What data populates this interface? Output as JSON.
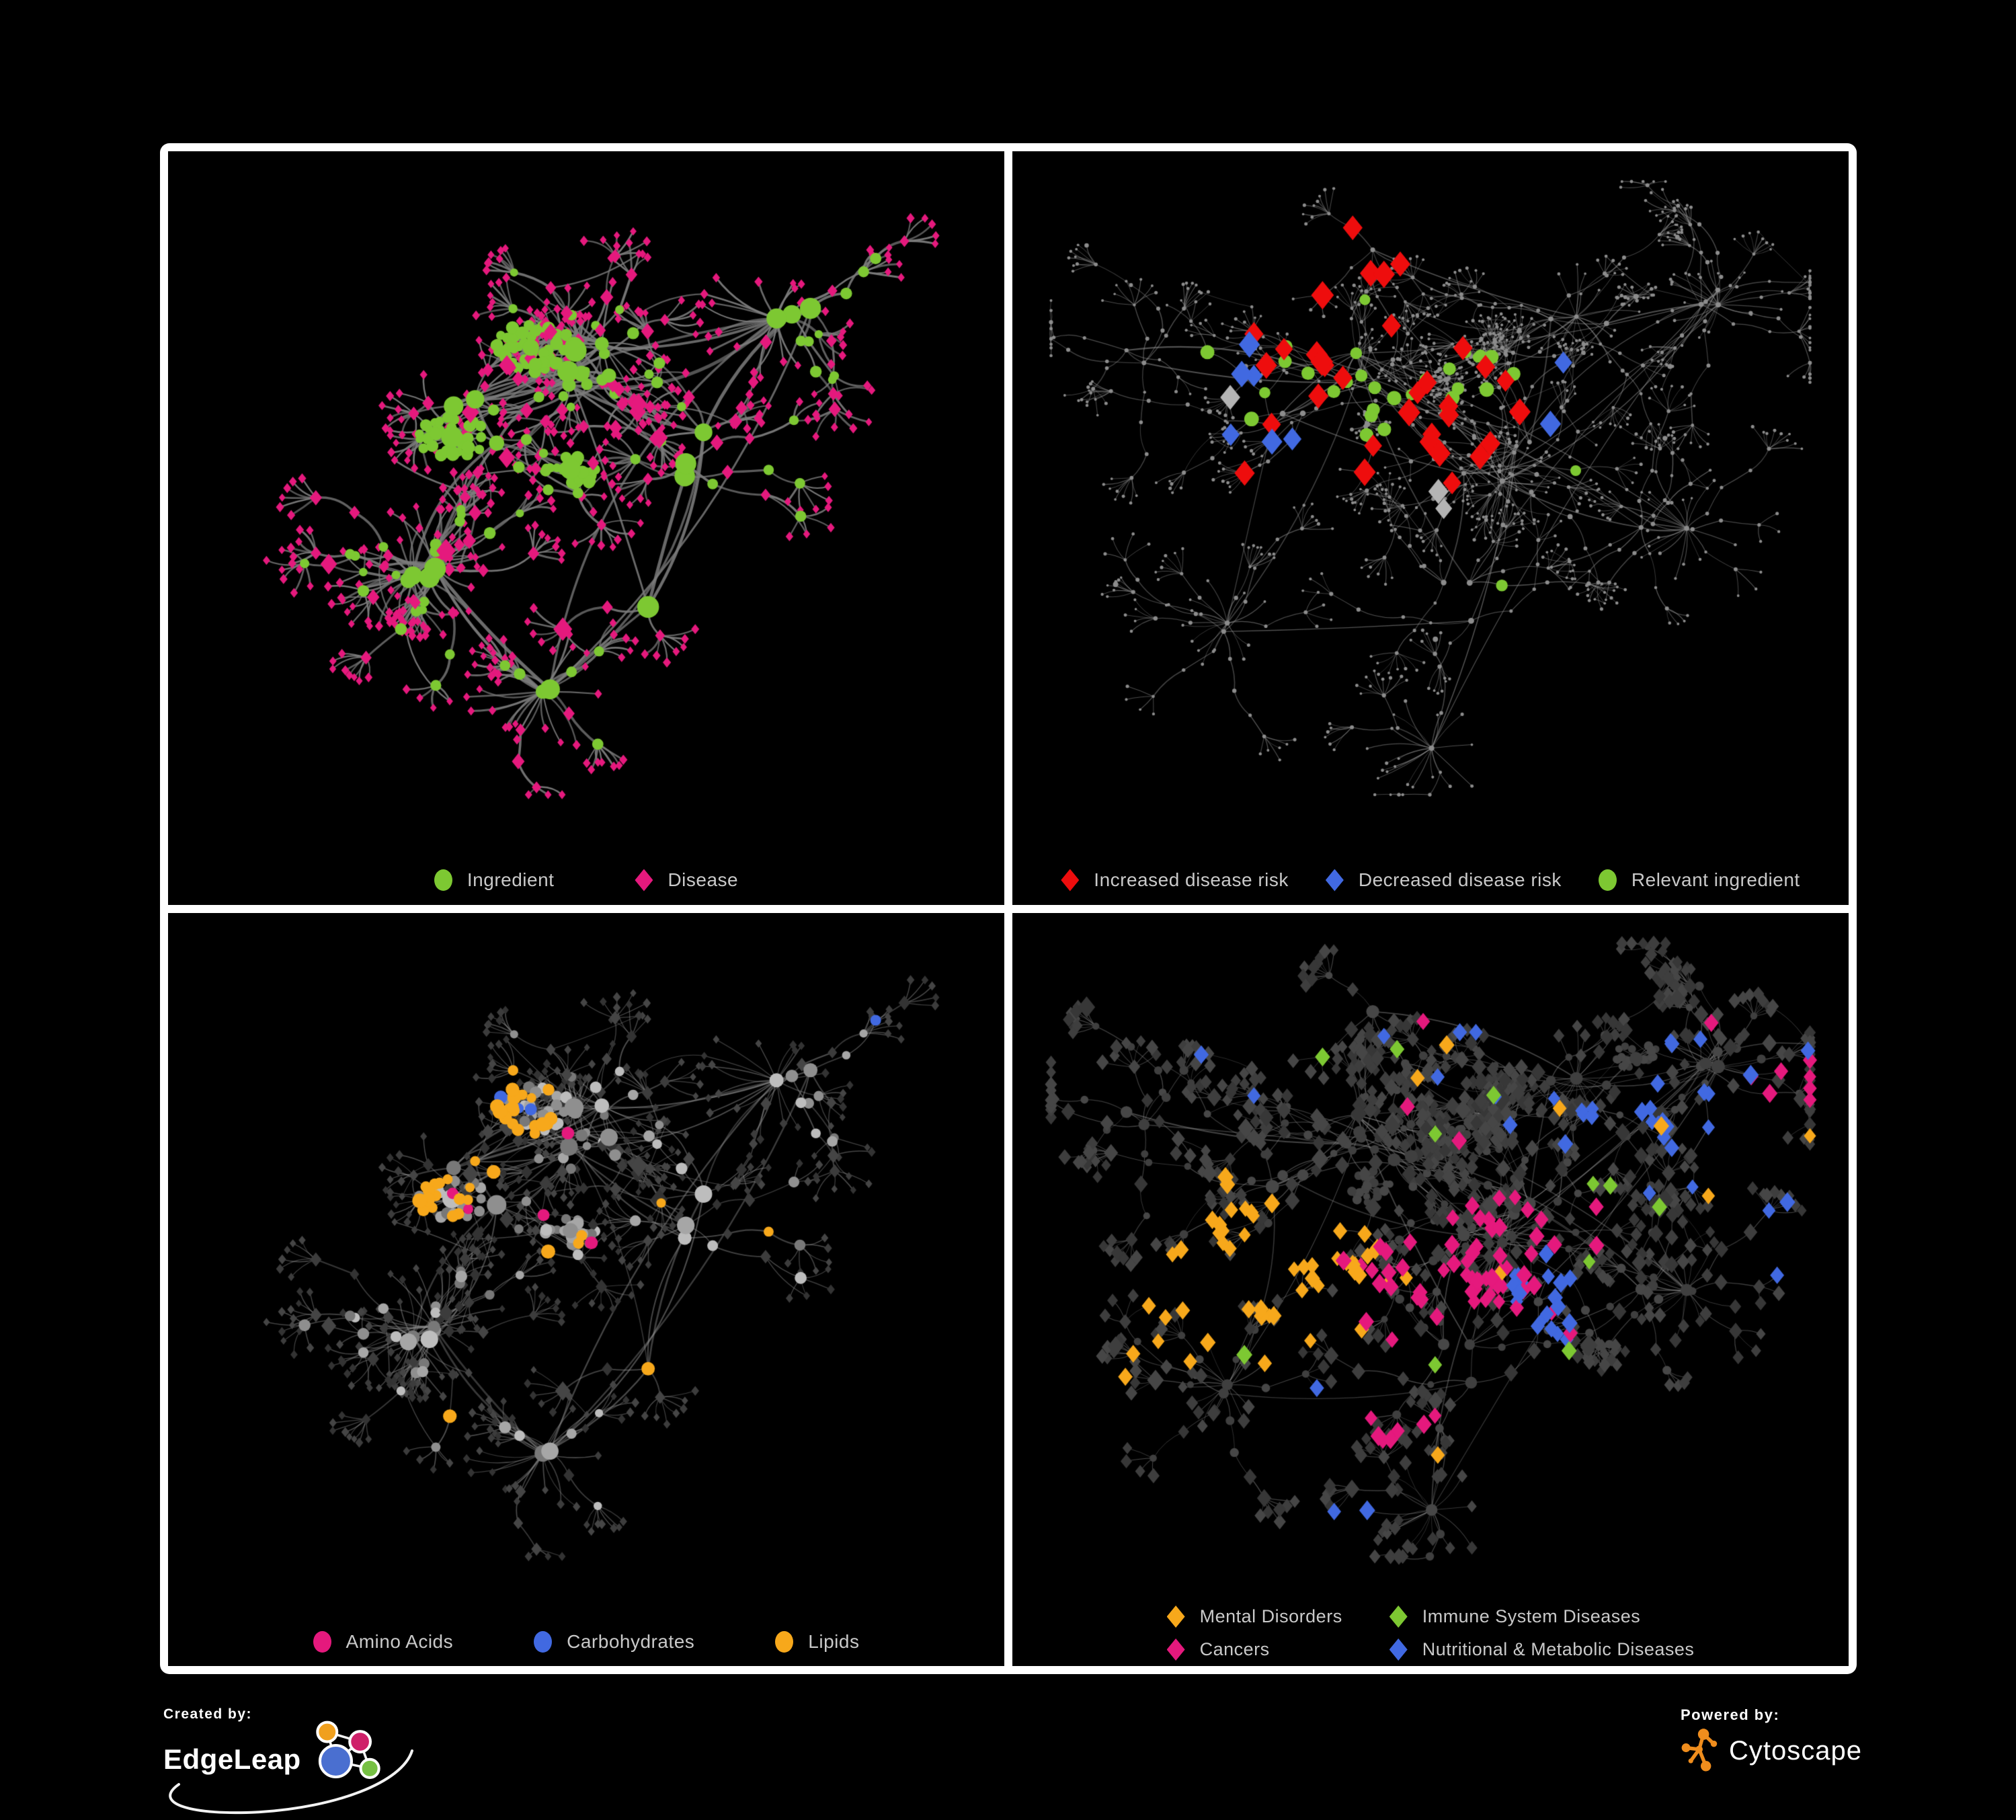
{
  "figure": {
    "background": "#000000",
    "frame_color": "#ffffff"
  },
  "panels": [
    {
      "id": "ingredient-disease",
      "legend": [
        {
          "shape": "circle",
          "color": "#7dc832",
          "label": "Ingredient"
        },
        {
          "shape": "diamond",
          "color": "#e5197d",
          "label": "Disease"
        }
      ],
      "layout": "A",
      "style": {
        "edge": {
          "color": "#7c7c7c",
          "alpha": 0.88,
          "width": 3.0,
          "curve": 0.5
        },
        "ingredient": {
          "shape": "circle",
          "colors": [
            "#7dc832"
          ],
          "rHub": [
            10,
            17
          ],
          "rBlob": [
            6.5,
            10
          ],
          "rMid": [
            6,
            9
          ],
          "rLeaf": [
            5,
            6
          ]
        },
        "disease": {
          "shape": "diamond",
          "colors": [
            "#e5197d"
          ],
          "rHub": [
            10,
            13
          ],
          "rBlob": [
            6,
            8
          ],
          "rMid": [
            7,
            10
          ],
          "rLeaf": [
            4.8,
            6.2
          ],
          "rBig": [
            12,
            15
          ]
        },
        "highlights": []
      }
    },
    {
      "id": "disease-risk",
      "legend": [
        {
          "shape": "diamond",
          "color": "#ee0d0d",
          "label": "Increased disease risk"
        },
        {
          "shape": "diamond",
          "color": "#4169e1",
          "label": "Decreased disease risk"
        },
        {
          "shape": "circle",
          "color": "#7dc832",
          "label": "Relevant ingredient"
        }
      ],
      "layout": "B",
      "style": {
        "edge": {
          "color": "#989898",
          "alpha": 0.5,
          "width": 1.25,
          "curve": 0.35
        },
        "ingredient": {
          "shape": "circle",
          "colors": [
            "#8c8c8c"
          ],
          "rHub": [
            3,
            4.5
          ],
          "rBlob": [
            2,
            3
          ],
          "rMid": [
            2.2,
            3.2
          ],
          "rLeaf": [
            1.8,
            2.6
          ]
        },
        "disease": {
          "shape": "circle",
          "colors": [
            "#8c8c8c"
          ],
          "rHub": [
            3,
            4.5
          ],
          "rBlob": [
            2,
            3
          ],
          "rMid": [
            2.2,
            3.2
          ],
          "rLeaf": [
            1.8,
            2.6
          ],
          "rBig": [
            3,
            4
          ]
        },
        "highlights": [
          {
            "applies": "disease",
            "roles": [
              "mid",
              "hub"
            ],
            "shape": "diamond",
            "color": "#ee0d0d",
            "size": [
              13,
              17
            ],
            "baseP": 0.004,
            "centers": [
              [
                0.42,
                0.3,
                0.16,
                0.5
              ],
              [
                0.47,
                0.43,
                0.13,
                0.45
              ],
              [
                0.3,
                0.34,
                0.07,
                0.3
              ],
              [
                0.62,
                0.9,
                0.05,
                0.55
              ],
              [
                0.56,
                0.3,
                0.09,
                0.3
              ],
              [
                0.67,
                0.33,
                0.05,
                0.35
              ]
            ]
          },
          {
            "applies": "disease",
            "roles": [
              "mid",
              "hub"
            ],
            "shape": "diamond",
            "color": "#4169e1",
            "size": [
              13,
              16
            ],
            "baseP": 0.0015,
            "centers": [
              [
                0.28,
                0.36,
                0.05,
                0.55
              ],
              [
                0.86,
                0.36,
                0.035,
                0.9
              ],
              [
                0.31,
                0.43,
                0.04,
                0.4
              ]
            ]
          },
          {
            "applies": "disease",
            "roles": [
              "mid",
              "hub"
            ],
            "shape": "diamond",
            "color": "#b4b4b4",
            "size": [
              12,
              15
            ],
            "baseP": 0.002,
            "centers": [
              [
                0.24,
                0.37,
                0.045,
                0.45
              ],
              [
                0.53,
                0.4,
                0.1,
                0.12
              ],
              [
                0.63,
                0.52,
                0.05,
                0.3
              ],
              [
                0.45,
                0.49,
                0.05,
                0.2
              ]
            ]
          },
          {
            "applies": "ingredient",
            "shape": "circle",
            "color": "#7dc832",
            "size": [
              8,
              11
            ],
            "baseP": 0.004,
            "centers": [
              [
                0.42,
                0.35,
                0.13,
                0.35
              ],
              [
                0.26,
                0.31,
                0.09,
                0.3
              ],
              [
                0.72,
                0.45,
                0.04,
                0.6
              ],
              [
                0.56,
                0.6,
                0.028,
                0.95
              ],
              [
                0.3,
                0.6,
                0.04,
                0.3
              ]
            ]
          }
        ]
      }
    },
    {
      "id": "nutrient-classes",
      "legend": [
        {
          "shape": "circle",
          "color": "#e5197d",
          "label": "Amino Acids"
        },
        {
          "shape": "circle",
          "color": "#4169e1",
          "label": "Carbohydrates"
        },
        {
          "shape": "circle",
          "color": "#f7a81b",
          "label": "Lipids"
        }
      ],
      "layout": "A",
      "style": {
        "edge": {
          "color": "#9a9a9a",
          "alpha": 0.45,
          "width": 1.7,
          "curve": 0.45
        },
        "ingredient": {
          "shape": "circle",
          "colors": [
            "#a6a6a6",
            "#8f8f8f",
            "#bdbdbd",
            "#787878"
          ],
          "rHub": [
            9,
            15
          ],
          "rBlob": [
            6,
            9
          ],
          "rMid": [
            6,
            9
          ],
          "rLeaf": [
            5,
            6
          ]
        },
        "disease": {
          "shape": "diamond",
          "colors": [
            "#3c3c3c",
            "#454545",
            "#333333"
          ],
          "rHub": [
            9,
            12
          ],
          "rBlob": [
            6,
            8
          ],
          "rMid": [
            6.5,
            9
          ],
          "rLeaf": [
            4.5,
            6
          ],
          "rBig": [
            10,
            13
          ]
        },
        "highlights": [
          {
            "applies": "ingredient",
            "shape": "circle",
            "color": "#f7a81b",
            "size": [
              7,
              11
            ],
            "baseP": 0.02,
            "centers": [
              [
                0.38,
                0.3,
                0.075,
                0.85
              ],
              [
                0.33,
                0.42,
                0.05,
                0.5
              ],
              [
                0.47,
                0.55,
                0.05,
                0.5
              ],
              [
                0.6,
                0.42,
                0.04,
                0.4
              ]
            ]
          },
          {
            "applies": "ingredient",
            "shape": "circle",
            "color": "#e5197d",
            "size": [
              7,
              10
            ],
            "baseP": 0.035,
            "centers": [
              [
                0.17,
                0.55,
                0.1,
                0.08
              ],
              [
                0.55,
                0.78,
                0.1,
                0.08
              ]
            ]
          },
          {
            "applies": "ingredient",
            "shape": "circle",
            "color": "#4169e1",
            "size": [
              7,
              10
            ],
            "baseP": 0.004,
            "centers": [
              [
                0.5,
                0.4,
                0.05,
                0.35
              ],
              [
                0.36,
                0.27,
                0.04,
                0.3
              ],
              [
                0.7,
                0.62,
                0.03,
                0.4
              ]
            ]
          }
        ]
      }
    },
    {
      "id": "disease-classes",
      "legend": [
        {
          "shape": "diamond",
          "color": "#f7a81b",
          "label": "Mental Disorders"
        },
        {
          "shape": "diamond",
          "color": "#7dc832",
          "label": "Immune System Diseases"
        },
        {
          "shape": "diamond",
          "color": "#e5197d",
          "label": "Cancers"
        },
        {
          "shape": "diamond",
          "color": "#4169e1",
          "label": "Nutritional & Metabolic Diseases"
        }
      ],
      "legend_columns": 2,
      "layout": "B",
      "style": {
        "edge": {
          "color": "#a0a0a0",
          "alpha": 0.42,
          "width": 1.15,
          "curve": 0.35
        },
        "ingredient": {
          "shape": "circle",
          "colors": [
            "#3f3f3f",
            "#474747"
          ],
          "rHub": [
            7,
            10
          ],
          "rBlob": [
            5,
            7
          ],
          "rMid": [
            5,
            7
          ],
          "rLeaf": [
            4.5,
            6
          ]
        },
        "disease": {
          "shape": "diamond",
          "colors": [
            "#3e3e3e",
            "#464646",
            "#373737"
          ],
          "rHub": [
            9,
            12
          ],
          "rBlob": [
            8,
            10
          ],
          "rMid": [
            8,
            11
          ],
          "rLeaf": [
            7,
            9.5
          ],
          "rBig": [
            11,
            13
          ]
        },
        "highlights": [
          {
            "applies": "disease",
            "shape": "diamond",
            "color": "#f7a81b",
            "size": [
              9,
              12
            ],
            "baseP": 0.01,
            "centers": [
              [
                0.3,
                0.53,
                0.11,
                0.95
              ],
              [
                0.22,
                0.6,
                0.07,
                0.6
              ],
              [
                0.38,
                0.42,
                0.05,
                0.35
              ],
              [
                0.14,
                0.38,
                0.05,
                0.3
              ]
            ]
          },
          {
            "applies": "disease",
            "shape": "diamond",
            "color": "#e5197d",
            "size": [
              9,
              12
            ],
            "baseP": 0.008,
            "centers": [
              [
                0.52,
                0.55,
                0.09,
                0.8
              ],
              [
                0.6,
                0.47,
                0.06,
                0.5
              ],
              [
                0.95,
                0.24,
                0.05,
                0.7
              ],
              [
                0.47,
                0.76,
                0.04,
                0.4
              ]
            ]
          },
          {
            "applies": "disease",
            "shape": "diamond",
            "color": "#4169e1",
            "size": [
              9,
              12
            ],
            "baseP": 0.012,
            "centers": [
              [
                0.64,
                0.58,
                0.055,
                0.85
              ],
              [
                0.78,
                0.28,
                0.09,
                0.45
              ],
              [
                0.56,
                0.13,
                0.07,
                0.4
              ],
              [
                0.36,
                0.74,
                0.05,
                0.45
              ],
              [
                0.93,
                0.5,
                0.05,
                0.5
              ],
              [
                0.24,
                0.12,
                0.06,
                0.35
              ],
              [
                0.52,
                0.95,
                0.04,
                0.5
              ]
            ]
          },
          {
            "applies": "disease",
            "shape": "diamond",
            "color": "#7dc832",
            "size": [
              9,
              12
            ],
            "baseP": 0,
            "centers": [
              [
                0.55,
                0.45,
                0.25,
                0.018
              ]
            ]
          }
        ]
      }
    }
  ],
  "networks": {
    "A": {
      "seed": 20,
      "hubs": 24,
      "clusters": [
        [
          0.36,
          0.4,
          3,
          0.07
        ],
        [
          0.5,
          0.3,
          2,
          0.06
        ],
        [
          0.64,
          0.44,
          1.6,
          0.07
        ],
        [
          0.3,
          0.64,
          1.6,
          0.06
        ],
        [
          0.56,
          0.66,
          1.2,
          0.06
        ],
        [
          0.75,
          0.24,
          1.0,
          0.06
        ],
        [
          0.45,
          0.83,
          0.8,
          0.05
        ],
        [
          0.17,
          0.34,
          0.8,
          0.05
        ],
        [
          0.85,
          0.55,
          0.6,
          0.05
        ]
      ],
      "blobs": [
        [
          0.43,
          0.28,
          40,
          0.045
        ],
        [
          0.33,
          0.42,
          34,
          0.042
        ],
        [
          0.48,
          0.47,
          26,
          0.035
        ]
      ],
      "branch": [
        2,
        4
      ],
      "chain": [
        1,
        3
      ],
      "fan": [
        3,
        8
      ],
      "step": [
        0.04,
        0.07
      ],
      "leafStep": [
        0.028,
        0.05
      ],
      "midDiseaseP": 0.55,
      "bigFans": 5,
      "extraLinks": 30,
      "linkDist": 0.14,
      "blobLink": 0.25
    },
    "B": {
      "seed": 77,
      "hubs": 34,
      "clusters": [
        [
          0.45,
          0.34,
          3,
          0.08
        ],
        [
          0.3,
          0.4,
          2,
          0.07
        ],
        [
          0.6,
          0.46,
          2,
          0.07
        ],
        [
          0.7,
          0.24,
          1.3,
          0.07
        ],
        [
          0.25,
          0.7,
          1,
          0.06
        ],
        [
          0.55,
          0.66,
          1.3,
          0.06
        ],
        [
          0.8,
          0.55,
          1,
          0.06
        ],
        [
          0.86,
          0.2,
          0.8,
          0.05
        ],
        [
          0.4,
          0.14,
          1,
          0.06
        ],
        [
          0.15,
          0.3,
          0.8,
          0.05
        ],
        [
          0.5,
          0.88,
          0.7,
          0.05
        ]
      ],
      "blobs": [
        [
          0.52,
          0.33,
          28,
          0.032
        ],
        [
          0.57,
          0.29,
          22,
          0.026
        ],
        [
          0.76,
          0.2,
          18,
          0.03
        ],
        [
          0.42,
          0.4,
          22,
          0.03
        ]
      ],
      "branch": [
        2,
        5
      ],
      "chain": [
        2,
        4
      ],
      "fan": [
        3,
        9
      ],
      "step": [
        0.035,
        0.06
      ],
      "leafStep": [
        0.022,
        0.042
      ],
      "midDiseaseP": 0.6,
      "bigFans": 6,
      "extraLinks": 80,
      "linkDist": 0.1,
      "blobLink": 0.2
    }
  },
  "footer": {
    "created_by_label": "Created by:",
    "created_by_name": "EdgeLeap",
    "powered_by_label": "Powered by:",
    "powered_by_name": "Cytoscape"
  }
}
